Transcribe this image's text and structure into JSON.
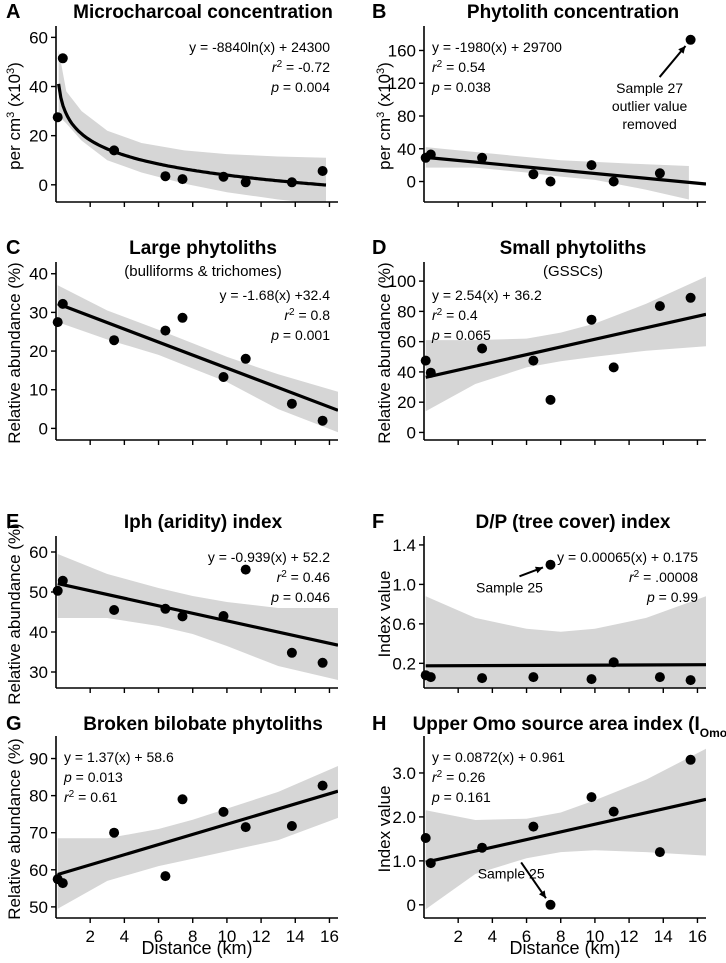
{
  "figure": {
    "x_axis_title": "Distance (km)"
  },
  "chart_data": [
    {
      "type": "scatter",
      "letter": "A",
      "title": "Microcharcoal concentration",
      "subtitle": "",
      "ylabel": "per cm³ (x10³)",
      "xlabel": "",
      "xlim": [
        0,
        16.5
      ],
      "ylim": [
        -7,
        63
      ],
      "yticks": [
        0,
        20,
        40,
        60
      ],
      "ytick_labels": [
        "0",
        "20",
        "40",
        "60"
      ],
      "xticks": [
        2,
        4,
        6,
        8,
        10,
        12,
        14,
        16
      ],
      "xtick_labels": [],
      "points": [
        [
          0.1,
          27.5
        ],
        [
          0.4,
          51.5
        ],
        [
          3.4,
          14
        ],
        [
          6.4,
          3.5
        ],
        [
          7.4,
          2.3
        ],
        [
          9.8,
          3.3
        ],
        [
          11.1,
          1
        ],
        [
          13.8,
          1
        ],
        [
          15.6,
          5.6
        ]
      ],
      "fit": {
        "kind": "log",
        "a": -8.84,
        "b": 24.3,
        "x_start": 0.15,
        "x_end": 15.8
      },
      "ci_upper": [
        [
          0.15,
          55
        ],
        [
          0.6,
          38
        ],
        [
          1.5,
          30
        ],
        [
          3,
          22
        ],
        [
          5,
          17
        ],
        [
          7.5,
          14
        ],
        [
          10,
          12.5
        ],
        [
          13,
          11.5
        ],
        [
          15.8,
          11
        ]
      ],
      "ci_lower": [
        [
          0.15,
          28
        ],
        [
          0.6,
          25
        ],
        [
          1.5,
          18
        ],
        [
          3,
          10
        ],
        [
          5,
          5
        ],
        [
          7.5,
          0.5
        ],
        [
          10,
          -3
        ],
        [
          13,
          -6
        ],
        [
          15.8,
          -8
        ]
      ],
      "equation": [
        "y = -8840ln(x) + 24300",
        "r² = -0.72",
        "p = 0.004"
      ],
      "annotations": []
    },
    {
      "type": "scatter",
      "letter": "B",
      "title": "Phytolith concentration",
      "subtitle": "",
      "ylabel": "per cm³ (x10³)",
      "xlabel": "",
      "xlim": [
        0,
        16.5
      ],
      "ylim": [
        -25,
        185
      ],
      "yticks": [
        0,
        40,
        80,
        120,
        160
      ],
      "ytick_labels": [
        "0",
        "40",
        "80",
        "120",
        "160"
      ],
      "xticks": [
        2,
        4,
        6,
        8,
        10,
        12,
        14,
        16
      ],
      "xtick_labels": [],
      "points": [
        [
          0.1,
          29
        ],
        [
          0.4,
          33
        ],
        [
          3.4,
          29
        ],
        [
          6.4,
          9
        ],
        [
          7.4,
          0
        ],
        [
          9.8,
          20
        ],
        [
          11.1,
          0
        ],
        [
          13.8,
          10
        ],
        [
          15.6,
          173
        ]
      ],
      "fit": {
        "kind": "linear",
        "slope": -1.98,
        "intercept": 29.7,
        "x_start": 0.1,
        "x_end": 16.5
      },
      "ci_upper": [
        [
          0.1,
          42
        ],
        [
          3,
          36
        ],
        [
          6,
          30
        ],
        [
          8,
          26
        ],
        [
          10,
          24
        ],
        [
          13,
          21
        ],
        [
          15.5,
          19
        ]
      ],
      "ci_lower": [
        [
          0.1,
          17
        ],
        [
          3,
          17
        ],
        [
          6,
          11
        ],
        [
          8,
          6
        ],
        [
          10,
          2
        ],
        [
          13,
          -10
        ],
        [
          15.5,
          -22
        ]
      ],
      "equation": [
        "y = -1980(x) + 29700",
        "r² = 0.54",
        "p = 0.038"
      ],
      "annotations": [
        {
          "lines": [
            "Sample 27",
            "outlier value",
            "removed"
          ],
          "target": [
            15.6,
            173
          ],
          "text_at": [
            13.2,
            108
          ]
        }
      ]
    },
    {
      "type": "scatter",
      "letter": "C",
      "title": "Large phytoliths",
      "subtitle": "(bulliforms & trichomes)",
      "ylabel": "Relative abundance (%)",
      "xlabel": "",
      "xlim": [
        0,
        16.5
      ],
      "ylim": [
        -3,
        42
      ],
      "yticks": [
        0,
        10,
        20,
        30,
        40
      ],
      "ytick_labels": [
        "0",
        "10",
        "20",
        "30",
        "40"
      ],
      "xticks": [
        2,
        4,
        6,
        8,
        10,
        12,
        14,
        16
      ],
      "xtick_labels": [],
      "points": [
        [
          0.1,
          27.5
        ],
        [
          0.4,
          32.2
        ],
        [
          3.4,
          22.8
        ],
        [
          6.4,
          25.3
        ],
        [
          7.4,
          28.6
        ],
        [
          9.8,
          13.3
        ],
        [
          11.1,
          18
        ],
        [
          13.8,
          6.4
        ],
        [
          15.6,
          2
        ]
      ],
      "fit": {
        "kind": "linear",
        "slope": -1.68,
        "intercept": 32.4,
        "x_start": 0.1,
        "x_end": 16.5
      },
      "ci_upper": [
        [
          0.1,
          37
        ],
        [
          3,
          30.5
        ],
        [
          6,
          25.5
        ],
        [
          8,
          22
        ],
        [
          10,
          18.5
        ],
        [
          13,
          14
        ],
        [
          16.5,
          9.5
        ]
      ],
      "ci_lower": [
        [
          0.1,
          27.5
        ],
        [
          3,
          23
        ],
        [
          6,
          19
        ],
        [
          8,
          15.5
        ],
        [
          10,
          12
        ],
        [
          13,
          5
        ],
        [
          16.5,
          -1
        ]
      ],
      "equation": [
        "y = -1.68(x) +32.4",
        "r² = 0.8",
        "p = 0.001"
      ],
      "annotations": []
    },
    {
      "type": "scatter",
      "letter": "D",
      "title": "Small phytoliths",
      "subtitle": "(GSSCs)",
      "ylabel": "Relative abundance (%)",
      "xlabel": "",
      "xlim": [
        0,
        16.5
      ],
      "ylim": [
        -5,
        110
      ],
      "yticks": [
        0,
        20,
        40,
        60,
        80,
        100
      ],
      "ytick_labels": [
        "0",
        "20",
        "40",
        "60",
        "80",
        "100"
      ],
      "xticks": [
        2,
        4,
        6,
        8,
        10,
        12,
        14,
        16
      ],
      "xtick_labels": [],
      "points": [
        [
          0.1,
          47.5
        ],
        [
          0.4,
          39.5
        ],
        [
          3.4,
          55.5
        ],
        [
          6.4,
          47.5
        ],
        [
          7.4,
          21.5
        ],
        [
          9.8,
          74.5
        ],
        [
          11.1,
          43
        ],
        [
          13.8,
          83.5
        ],
        [
          15.6,
          89
        ]
      ],
      "fit": {
        "kind": "linear",
        "slope": 2.54,
        "intercept": 36.2,
        "x_start": 0.1,
        "x_end": 16.5
      },
      "ci_upper": [
        [
          0.1,
          61
        ],
        [
          3,
          61
        ],
        [
          6,
          62
        ],
        [
          8,
          66
        ],
        [
          10,
          72
        ],
        [
          13,
          85
        ],
        [
          16.5,
          103
        ]
      ],
      "ci_lower": [
        [
          0.1,
          14
        ],
        [
          3,
          32
        ],
        [
          6,
          43
        ],
        [
          8,
          47
        ],
        [
          10,
          50
        ],
        [
          13,
          54
        ],
        [
          16.5,
          57
        ]
      ],
      "equation": [
        "y = 2.54(x) + 36.2",
        "r² = 0.4",
        "p = 0.065"
      ],
      "annotations": []
    },
    {
      "type": "scatter",
      "letter": "E",
      "title": "Iph (aridity) index",
      "subtitle": "",
      "ylabel": "Relative abundance (%)",
      "xlabel": "",
      "xlim": [
        0,
        16.5
      ],
      "ylim": [
        26,
        63
      ],
      "yticks": [
        30,
        40,
        50,
        60
      ],
      "ytick_labels": [
        "30",
        "40",
        "50",
        "60"
      ],
      "xticks": [
        2,
        4,
        6,
        8,
        10,
        12,
        14,
        16
      ],
      "xtick_labels": [],
      "points": [
        [
          0.1,
          50.3
        ],
        [
          0.4,
          52.8
        ],
        [
          3.4,
          45.5
        ],
        [
          6.4,
          45.8
        ],
        [
          7.4,
          43.9
        ],
        [
          9.8,
          44
        ],
        [
          11.1,
          55.6
        ],
        [
          13.8,
          34.8
        ],
        [
          15.6,
          32.3
        ]
      ],
      "fit": {
        "kind": "linear",
        "slope": -0.939,
        "intercept": 52.2,
        "x_start": 0.1,
        "x_end": 16.5
      },
      "ci_upper": [
        [
          0.1,
          59.5
        ],
        [
          3,
          54.5
        ],
        [
          6,
          51
        ],
        [
          8,
          49
        ],
        [
          10,
          47.5
        ],
        [
          13,
          46
        ],
        [
          16.5,
          46
        ]
      ],
      "ci_lower": [
        [
          0.1,
          43.5
        ],
        [
          3,
          43.5
        ],
        [
          6,
          41.5
        ],
        [
          8,
          39.5
        ],
        [
          10,
          36.5
        ],
        [
          13,
          31.5
        ],
        [
          16.5,
          28
        ]
      ],
      "equation": [
        "y = -0.939(x) + 52.2",
        "r² = 0.46",
        "p = 0.046"
      ],
      "annotations": []
    },
    {
      "type": "scatter",
      "letter": "F",
      "title": "D/P (tree cover) index",
      "subtitle": "",
      "ylabel": "Index value",
      "xlabel": "",
      "xlim": [
        0,
        16.5
      ],
      "ylim": [
        -0.05,
        1.45
      ],
      "yticks": [
        0.2,
        0.6,
        1.0,
        1.4
      ],
      "ytick_labels": [
        "0.2",
        "0.6",
        "1.0",
        "1.4"
      ],
      "xticks": [
        2,
        4,
        6,
        8,
        10,
        12,
        14,
        16
      ],
      "xtick_labels": [],
      "points": [
        [
          0.1,
          0.08
        ],
        [
          0.4,
          0.06
        ],
        [
          3.4,
          0.05
        ],
        [
          6.4,
          0.06
        ],
        [
          7.4,
          1.2
        ],
        [
          9.8,
          0.04
        ],
        [
          11.1,
          0.21
        ],
        [
          13.8,
          0.06
        ],
        [
          15.6,
          0.03
        ]
      ],
      "fit": {
        "kind": "linear",
        "slope": 0.00065,
        "intercept": 0.175,
        "x_start": 0.1,
        "x_end": 16.5
      },
      "ci_upper": [
        [
          0.1,
          0.88
        ],
        [
          3,
          0.66
        ],
        [
          6,
          0.55
        ],
        [
          8,
          0.52
        ],
        [
          10,
          0.55
        ],
        [
          13,
          0.66
        ],
        [
          16.5,
          0.88
        ]
      ],
      "ci_lower": [
        [
          0.1,
          -0.05
        ],
        [
          16.5,
          -0.05
        ]
      ],
      "equation": [
        "y = 0.00065(x) + 0.175",
        "r² = .00008",
        "p = 0.99"
      ],
      "annotations": [
        {
          "lines": [
            "Sample 25"
          ],
          "target": [
            7.4,
            1.2
          ],
          "text_at": [
            5.0,
            0.92
          ]
        }
      ]
    },
    {
      "type": "scatter",
      "letter": "G",
      "title": "Broken bilobate phytoliths",
      "subtitle": "",
      "ylabel": "Relative abundance (%)",
      "xlabel": "Distance (km)",
      "xlim": [
        0,
        16.5
      ],
      "ylim": [
        47,
        95
      ],
      "yticks": [
        50,
        60,
        70,
        80,
        90
      ],
      "ytick_labels": [
        "50",
        "60",
        "70",
        "80",
        "90"
      ],
      "xticks": [
        2,
        4,
        6,
        8,
        10,
        12,
        14,
        16
      ],
      "xtick_labels": [
        "2",
        "4",
        "6",
        "8",
        "10",
        "12",
        "14",
        "16"
      ],
      "points": [
        [
          0.1,
          57.5
        ],
        [
          0.4,
          56.4
        ],
        [
          3.4,
          70
        ],
        [
          6.4,
          58.3
        ],
        [
          7.4,
          79
        ],
        [
          9.8,
          75.6
        ],
        [
          11.1,
          71.5
        ],
        [
          13.8,
          71.8
        ],
        [
          15.6,
          82.7
        ]
      ],
      "fit": {
        "kind": "linear",
        "slope": 1.37,
        "intercept": 58.6,
        "x_start": 0.1,
        "x_end": 16.5
      },
      "ci_upper": [
        [
          0.1,
          68.5
        ],
        [
          3,
          68.5
        ],
        [
          6,
          71
        ],
        [
          8,
          73.5
        ],
        [
          10,
          76.5
        ],
        [
          13,
          81
        ],
        [
          16.5,
          88
        ]
      ],
      "ci_lower": [
        [
          0.1,
          49.5
        ],
        [
          3,
          57
        ],
        [
          6,
          61
        ],
        [
          8,
          63
        ],
        [
          10,
          65
        ],
        [
          13,
          68
        ],
        [
          16.5,
          74
        ]
      ],
      "equation": [
        "y = 1.37(x) + 58.6",
        "p = 0.013",
        "r² = 0.61"
      ],
      "annotations": []
    },
    {
      "type": "scatter",
      "letter": "H",
      "title": "Upper Omo source area index",
      "title_suffix": "(I",
      "title_sub": "Omo",
      "title_close": ")",
      "subtitle": "",
      "ylabel": "Index value",
      "xlabel": "Distance (km)",
      "xlim": [
        0,
        16.5
      ],
      "ylim": [
        -0.3,
        3.75
      ],
      "yticks": [
        0,
        1.0,
        2.0,
        3.0
      ],
      "ytick_labels": [
        "0",
        "1.0",
        "2.0",
        "3.0"
      ],
      "xticks": [
        2,
        4,
        6,
        8,
        10,
        12,
        14,
        16
      ],
      "xtick_labels": [
        "2",
        "4",
        "6",
        "8",
        "10",
        "12",
        "14",
        "16"
      ],
      "points": [
        [
          0.1,
          1.52
        ],
        [
          0.4,
          0.95
        ],
        [
          3.4,
          1.3
        ],
        [
          6.4,
          1.78
        ],
        [
          7.4,
          0
        ],
        [
          9.8,
          2.45
        ],
        [
          11.1,
          2.12
        ],
        [
          13.8,
          1.2
        ],
        [
          15.6,
          3.3
        ]
      ],
      "fit": {
        "kind": "linear",
        "slope": 0.0872,
        "intercept": 0.961,
        "x_start": 0.1,
        "x_end": 16.5
      },
      "ci_upper": [
        [
          0.1,
          2.15
        ],
        [
          3,
          1.93
        ],
        [
          6,
          1.96
        ],
        [
          8,
          2.1
        ],
        [
          10,
          2.38
        ],
        [
          13,
          2.85
        ],
        [
          16.5,
          3.55
        ]
      ],
      "ci_lower": [
        [
          0.1,
          -0.1
        ],
        [
          3,
          0.7
        ],
        [
          6,
          1.06
        ],
        [
          8,
          1.2
        ],
        [
          10,
          1.24
        ],
        [
          13,
          1.2
        ],
        [
          16.5,
          1.12
        ]
      ],
      "equation": [
        "y = 0.0872(x) + 0.961",
        "r² = 0.26",
        "p = 0.161"
      ],
      "annotations": [
        {
          "lines": [
            "Sample 25"
          ],
          "target": [
            7.4,
            0
          ],
          "text_at": [
            5.1,
            0.6
          ]
        }
      ]
    }
  ]
}
